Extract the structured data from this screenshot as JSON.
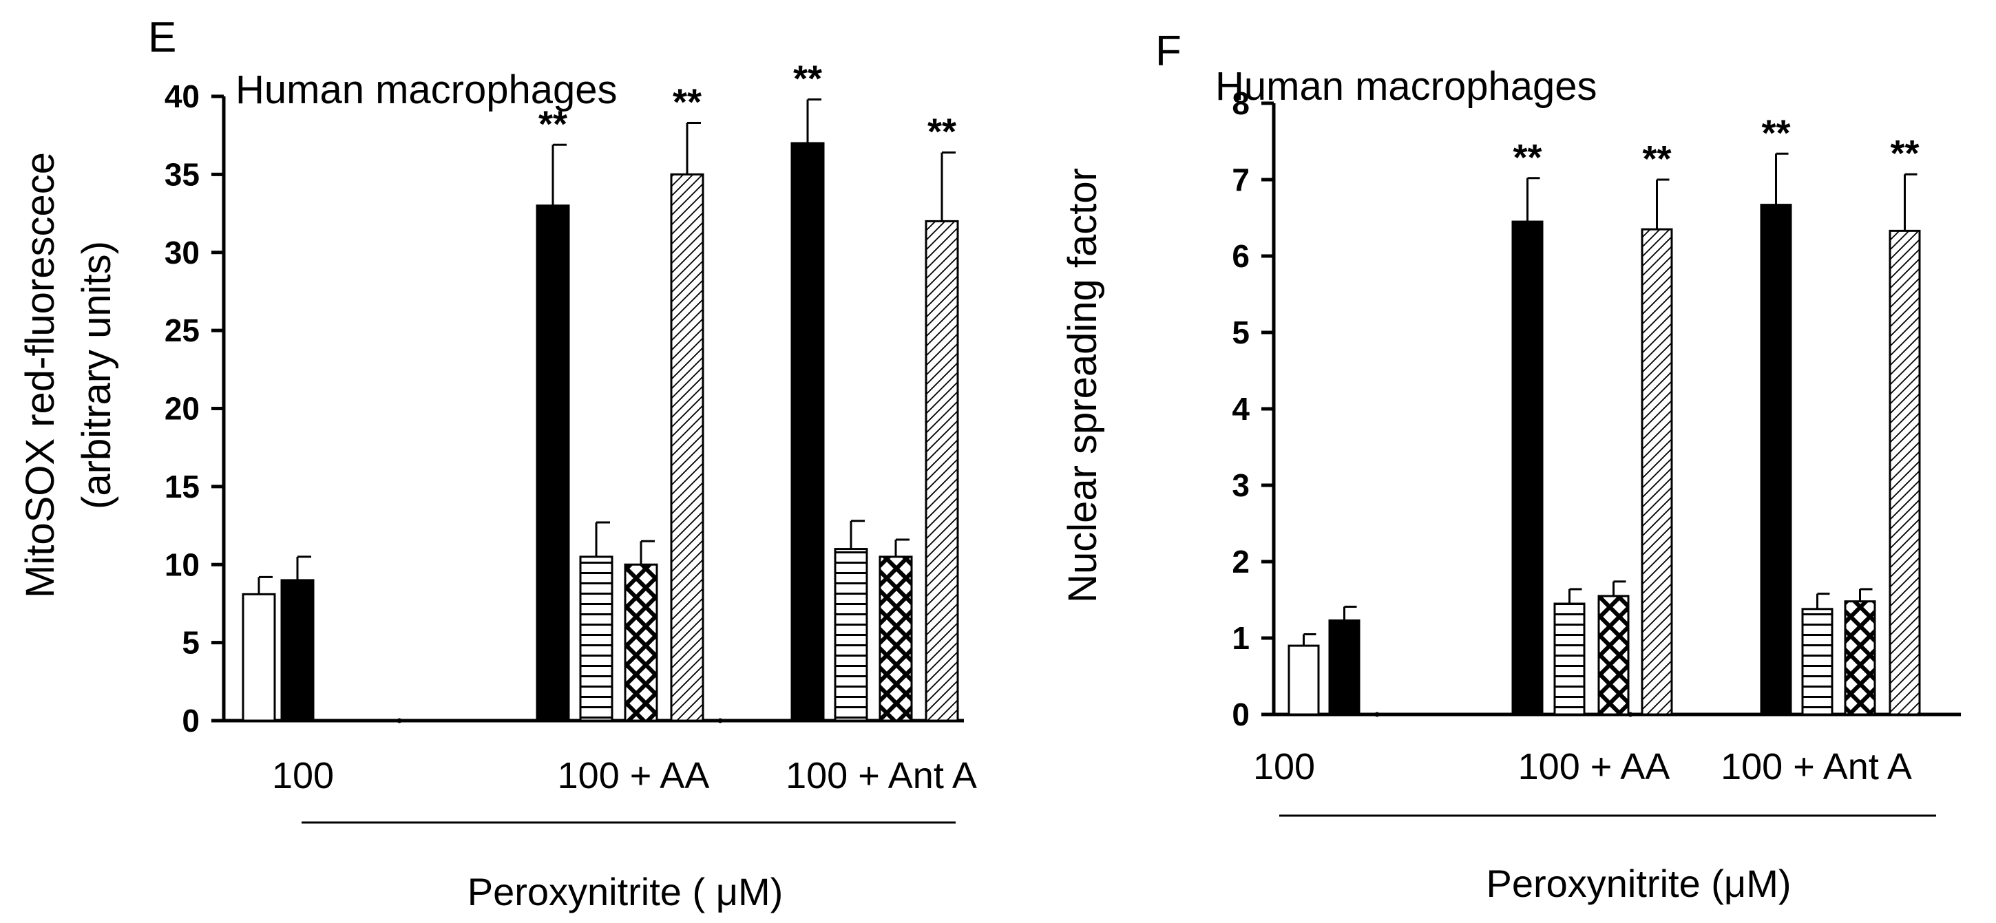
{
  "chart_data": [
    {
      "type": "bar",
      "panel_label": "E",
      "title": "Human macrophages",
      "ylabel_line1": "MitoSOX red-fluorescece",
      "ylabel_line2": "(arbitrary units)",
      "xlabel": "Peroxynitrite ( μM)",
      "ylim": [
        0,
        40
      ],
      "yticks": [
        "0",
        "5",
        "10",
        "15",
        "20",
        "25",
        "30",
        "35",
        "40"
      ],
      "ytick_values": [
        0,
        5,
        10,
        15,
        20,
        25,
        30,
        35,
        40
      ],
      "categories": [
        "100",
        "100 + AA",
        "100 + Ant A"
      ],
      "legend": "none",
      "grid": false,
      "bars": [
        {
          "group": 0,
          "fill": "white",
          "value": 8.1,
          "error": 1.1,
          "star": ""
        },
        {
          "group": 0,
          "fill": "black",
          "value": 9.0,
          "error": 1.5,
          "star": ""
        },
        {
          "group": 1,
          "fill": "black",
          "value": 33.0,
          "error": 3.9,
          "star": "**"
        },
        {
          "group": 1,
          "fill": "hlines",
          "value": 10.5,
          "error": 2.2,
          "star": ""
        },
        {
          "group": 1,
          "fill": "crosshatch",
          "value": 10.0,
          "error": 1.5,
          "star": ""
        },
        {
          "group": 1,
          "fill": "diagonal",
          "value": 35.0,
          "error": 3.3,
          "star": "**"
        },
        {
          "group": 2,
          "fill": "black",
          "value": 37.0,
          "error": 2.8,
          "star": "**"
        },
        {
          "group": 2,
          "fill": "hlines",
          "value": 11.0,
          "error": 1.8,
          "star": ""
        },
        {
          "group": 2,
          "fill": "crosshatch",
          "value": 10.5,
          "error": 1.1,
          "star": ""
        },
        {
          "group": 2,
          "fill": "diagonal",
          "value": 32.0,
          "error": 4.4,
          "star": "**"
        }
      ]
    },
    {
      "type": "bar",
      "panel_label": "F",
      "title": "Human macrophages",
      "ylabel_line1": "Nuclear spreading factor",
      "ylabel_line2": "",
      "xlabel": "Peroxynitrite (μM)",
      "ylim": [
        0,
        8
      ],
      "yticks": [
        "0",
        "1",
        "2",
        "3",
        "4",
        "5",
        "6",
        "7",
        "8"
      ],
      "ytick_values": [
        0,
        1,
        2,
        3,
        4,
        5,
        6,
        7,
        8
      ],
      "categories": [
        "100",
        "100 + AA",
        "100 + Ant A"
      ],
      "legend": "none",
      "grid": false,
      "bars": [
        {
          "group": 0,
          "fill": "white",
          "value": 0.9,
          "error": 0.15,
          "star": ""
        },
        {
          "group": 0,
          "fill": "black",
          "value": 1.23,
          "error": 0.18,
          "star": ""
        },
        {
          "group": 1,
          "fill": "black",
          "value": 6.45,
          "error": 0.57,
          "star": "**"
        },
        {
          "group": 1,
          "fill": "hlines",
          "value": 1.45,
          "error": 0.19,
          "star": ""
        },
        {
          "group": 1,
          "fill": "crosshatch",
          "value": 1.55,
          "error": 0.19,
          "star": ""
        },
        {
          "group": 1,
          "fill": "diagonal",
          "value": 6.35,
          "error": 0.65,
          "star": "**"
        },
        {
          "group": 2,
          "fill": "black",
          "value": 6.67,
          "error": 0.67,
          "star": "**"
        },
        {
          "group": 2,
          "fill": "hlines",
          "value": 1.38,
          "error": 0.2,
          "star": ""
        },
        {
          "group": 2,
          "fill": "crosshatch",
          "value": 1.48,
          "error": 0.16,
          "star": ""
        },
        {
          "group": 2,
          "fill": "diagonal",
          "value": 6.33,
          "error": 0.74,
          "star": "**"
        }
      ]
    }
  ]
}
